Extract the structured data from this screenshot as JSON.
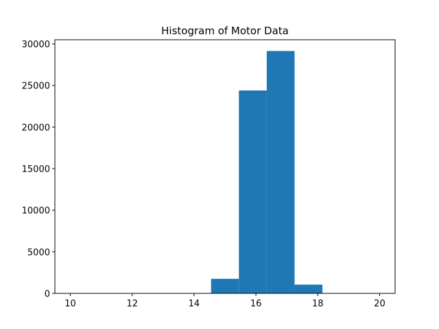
{
  "chart_data": {
    "type": "bar",
    "title": "Histogram of Motor Data",
    "xlabel": "",
    "ylabel": "",
    "xlim": [
      9.5,
      20.5
    ],
    "ylim": [
      0,
      30500
    ],
    "xticks": [
      10,
      12,
      14,
      16,
      18,
      20
    ],
    "yticks": [
      0,
      5000,
      10000,
      15000,
      20000,
      25000,
      30000
    ],
    "bin_edges": [
      14.55,
      15.45,
      16.35,
      17.25,
      18.15
    ],
    "values": [
      1750,
      24400,
      29150,
      1050
    ],
    "bar_color": "#1f77b4",
    "grid": false,
    "legend": "none"
  }
}
